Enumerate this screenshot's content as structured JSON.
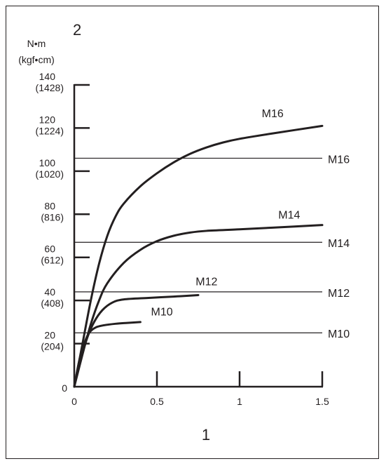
{
  "chart_data": {
    "type": "line",
    "corner_label": "2",
    "xlabel": "1",
    "ylabel_unit": "N•m",
    "ylabel_unit_alt": "(kgf•cm)",
    "xlim": [
      0,
      1.5
    ],
    "ylim": [
      0,
      140
    ],
    "x_ticks": [
      {
        "value": 0,
        "label": "0"
      },
      {
        "value": 0.5,
        "label": "0.5"
      },
      {
        "value": 1,
        "label": "1"
      },
      {
        "value": 1.5,
        "label": "1.5"
      }
    ],
    "y_ticks": [
      {
        "value": 0,
        "label": "0",
        "alt": ""
      },
      {
        "value": 20,
        "label": "20",
        "alt": "(204)"
      },
      {
        "value": 40,
        "label": "40",
        "alt": "(408)"
      },
      {
        "value": 60,
        "label": "60",
        "alt": "(612)"
      },
      {
        "value": 80,
        "label": "80",
        "alt": "(816)"
      },
      {
        "value": 100,
        "label": "100",
        "alt": "(1020)"
      },
      {
        "value": 120,
        "label": "120",
        "alt": "(1224)"
      },
      {
        "value": 140,
        "label": "140",
        "alt": "(1428)"
      }
    ],
    "grid": false,
    "series": [
      {
        "name": "M10",
        "x": [
          0,
          0.03,
          0.06,
          0.09,
          0.13,
          0.18,
          0.25,
          0.32,
          0.4
        ],
        "y": [
          0,
          12,
          20,
          25,
          27.5,
          28.5,
          29.2,
          29.6,
          30
        ]
      },
      {
        "name": "M12",
        "x": [
          0,
          0.04,
          0.08,
          0.12,
          0.17,
          0.23,
          0.3,
          0.45,
          0.6,
          0.75
        ],
        "y": [
          0,
          13,
          23,
          30,
          35.5,
          39,
          40.5,
          41.2,
          41.8,
          42.5
        ]
      },
      {
        "name": "M14",
        "x": [
          0,
          0.05,
          0.1,
          0.15,
          0.2,
          0.3,
          0.4,
          0.5,
          0.6,
          0.7,
          0.8,
          1.0,
          1.2,
          1.5
        ],
        "y": [
          0,
          15,
          29,
          40,
          48,
          57.5,
          63.5,
          67.5,
          70,
          71.5,
          72.3,
          73,
          73.8,
          75
        ]
      },
      {
        "name": "M16",
        "x": [
          0,
          0.05,
          0.1,
          0.15,
          0.2,
          0.25,
          0.3,
          0.4,
          0.5,
          0.6,
          0.7,
          0.8,
          0.9,
          1.0,
          1.2,
          1.5
        ],
        "y": [
          0,
          20,
          40,
          57,
          70,
          79,
          85,
          93,
          99,
          104,
          108,
          111,
          113.3,
          115,
          117.5,
          121
        ]
      }
    ],
    "reference_lines": [
      {
        "name": "M10",
        "y": 25
      },
      {
        "name": "M12",
        "y": 44
      },
      {
        "name": "M14",
        "y": 67
      },
      {
        "name": "M16",
        "y": 106
      }
    ],
    "curve_labels": [
      {
        "text": "M16",
        "x": 1.2,
        "y": 125
      },
      {
        "text": "M14",
        "x": 1.3,
        "y": 78
      },
      {
        "text": "M12",
        "x": 0.8,
        "y": 47
      },
      {
        "text": "M10",
        "x": 0.53,
        "y": 33
      }
    ]
  }
}
